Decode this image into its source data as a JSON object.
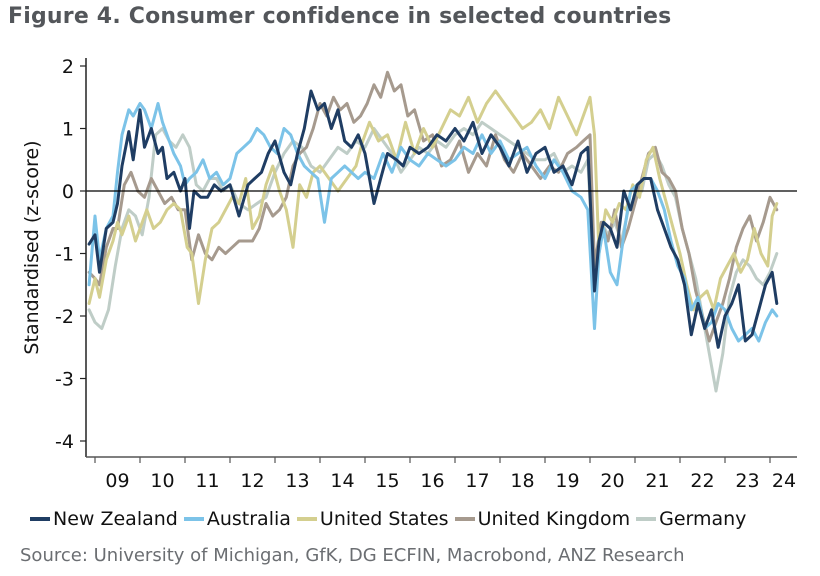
{
  "title": "Figure 4. Consumer confidence in selected countries",
  "source": "Source: University of Michigan, GfK, DG ECFIN, Macrobond, ANZ Research",
  "chart_data": {
    "type": "line",
    "title": "Figure 4. Consumer confidence in selected countries",
    "xlabel": "",
    "ylabel": "Standardised (z-score)",
    "xlim": [
      2008.8,
      2024.6
    ],
    "ylim": [
      -4.2,
      2.2
    ],
    "yticks": [
      2,
      1,
      0,
      -1,
      -2,
      -3,
      -4
    ],
    "ytick_labels": [
      "2",
      "1",
      "0",
      "-1",
      "-2",
      "-3",
      "-4"
    ],
    "xticks": [
      2009,
      2010,
      2011,
      2012,
      2013,
      2014,
      2015,
      2016,
      2017,
      2018,
      2019,
      2020,
      2021,
      2022,
      2023,
      2024
    ],
    "xtick_labels": [
      "09",
      "10",
      "11",
      "12",
      "13",
      "14",
      "15",
      "16",
      "17",
      "18",
      "19",
      "20",
      "21",
      "22",
      "23",
      "24"
    ],
    "zero_line": true,
    "grid": false,
    "legend_position": "bottom",
    "series": [
      {
        "name": "New Zealand",
        "color": "#1f3d63",
        "x": [
          2008.87,
          2009.0,
          2009.1,
          2009.25,
          2009.4,
          2009.5,
          2009.6,
          2009.75,
          2009.85,
          2010.0,
          2010.1,
          2010.25,
          2010.4,
          2010.5,
          2010.6,
          2010.75,
          2010.9,
          2011.0,
          2011.1,
          2011.2,
          2011.35,
          2011.5,
          2011.65,
          2011.8,
          2012.0,
          2012.2,
          2012.4,
          2012.55,
          2012.7,
          2012.85,
          2013.0,
          2013.2,
          2013.35,
          2013.5,
          2013.65,
          2013.8,
          2013.95,
          2014.1,
          2014.25,
          2014.4,
          2014.55,
          2014.7,
          2014.85,
          2015.0,
          2015.2,
          2015.35,
          2015.5,
          2015.7,
          2015.85,
          2016.0,
          2016.2,
          2016.4,
          2016.6,
          2016.8,
          2017.0,
          2017.2,
          2017.4,
          2017.6,
          2017.8,
          2018.0,
          2018.2,
          2018.4,
          2018.6,
          2018.8,
          2019.0,
          2019.2,
          2019.4,
          2019.6,
          2019.8,
          2019.95,
          2020.1,
          2020.2,
          2020.3,
          2020.45,
          2020.6,
          2020.75,
          2020.9,
          2021.05,
          2021.2,
          2021.35,
          2021.5,
          2021.65,
          2021.8,
          2021.95,
          2022.1,
          2022.25,
          2022.4,
          2022.55,
          2022.7,
          2022.85,
          2023.0,
          2023.15,
          2023.3,
          2023.45,
          2023.6,
          2023.75,
          2023.9,
          2024.05,
          2024.15
        ],
        "y": [
          -0.85,
          -0.7,
          -1.3,
          -0.6,
          -0.5,
          -0.2,
          0.4,
          0.95,
          0.5,
          1.3,
          0.7,
          1.0,
          0.6,
          0.7,
          0.2,
          0.3,
          0.0,
          0.2,
          -0.6,
          0.0,
          -0.1,
          -0.1,
          0.1,
          0.0,
          0.1,
          -0.4,
          0.1,
          0.2,
          0.3,
          0.6,
          0.8,
          0.3,
          0.1,
          0.6,
          1.0,
          1.6,
          1.3,
          1.4,
          1.0,
          1.3,
          0.8,
          0.7,
          0.9,
          0.6,
          -0.2,
          0.2,
          0.6,
          0.5,
          0.4,
          0.7,
          0.6,
          0.7,
          0.9,
          0.8,
          1.0,
          0.8,
          1.1,
          0.6,
          0.9,
          0.7,
          0.4,
          0.8,
          0.3,
          0.6,
          0.7,
          0.3,
          0.4,
          0.1,
          0.6,
          0.7,
          -1.6,
          -0.8,
          -0.5,
          -0.6,
          -0.9,
          0.0,
          -0.3,
          0.1,
          0.2,
          0.2,
          -0.3,
          -0.6,
          -0.9,
          -1.1,
          -1.5,
          -2.3,
          -1.8,
          -2.2,
          -1.9,
          -2.5,
          -2.0,
          -1.8,
          -1.5,
          -2.4,
          -2.3,
          -1.9,
          -1.5,
          -1.3,
          -1.8
        ]
      },
      {
        "name": "Australia",
        "color": "#7cc3e8",
        "x": [
          2008.87,
          2009.0,
          2009.1,
          2009.25,
          2009.4,
          2009.5,
          2009.6,
          2009.75,
          2009.85,
          2010.0,
          2010.1,
          2010.25,
          2010.4,
          2010.5,
          2010.6,
          2010.75,
          2010.9,
          2011.0,
          2011.1,
          2011.25,
          2011.4,
          2011.55,
          2011.7,
          2011.85,
          2012.0,
          2012.15,
          2012.3,
          2012.45,
          2012.6,
          2012.75,
          2012.9,
          2013.05,
          2013.2,
          2013.35,
          2013.5,
          2013.65,
          2013.8,
          2013.95,
          2014.1,
          2014.25,
          2014.4,
          2014.55,
          2014.7,
          2014.85,
          2015.0,
          2015.2,
          2015.4,
          2015.6,
          2015.8,
          2016.0,
          2016.2,
          2016.4,
          2016.6,
          2016.8,
          2017.0,
          2017.2,
          2017.4,
          2017.6,
          2017.8,
          2018.0,
          2018.2,
          2018.4,
          2018.6,
          2018.8,
          2019.0,
          2019.2,
          2019.4,
          2019.6,
          2019.8,
          2019.95,
          2020.1,
          2020.2,
          2020.3,
          2020.45,
          2020.6,
          2020.75,
          2020.9,
          2021.05,
          2021.2,
          2021.35,
          2021.5,
          2021.65,
          2021.8,
          2021.95,
          2022.1,
          2022.25,
          2022.4,
          2022.55,
          2022.7,
          2022.85,
          2023.0,
          2023.15,
          2023.3,
          2023.45,
          2023.6,
          2023.75,
          2023.9,
          2024.05,
          2024.15
        ],
        "y": [
          -1.5,
          -0.4,
          -1.1,
          -0.6,
          -0.4,
          0.3,
          0.9,
          1.3,
          1.2,
          1.4,
          1.3,
          1.0,
          1.4,
          1.1,
          0.9,
          0.6,
          0.4,
          0.1,
          0.2,
          0.3,
          0.5,
          0.2,
          0.3,
          0.1,
          0.2,
          0.6,
          0.7,
          0.8,
          1.0,
          0.9,
          0.7,
          0.6,
          1.0,
          0.9,
          0.6,
          0.4,
          0.3,
          0.2,
          -0.5,
          0.2,
          0.3,
          0.4,
          0.3,
          0.2,
          0.3,
          0.2,
          0.6,
          0.3,
          0.7,
          0.5,
          0.4,
          0.6,
          0.5,
          0.4,
          0.5,
          0.7,
          0.6,
          0.9,
          0.6,
          0.8,
          0.5,
          0.6,
          0.7,
          0.4,
          0.2,
          0.5,
          0.3,
          0.0,
          -0.1,
          -0.3,
          -2.2,
          -1.0,
          -0.6,
          -1.3,
          -1.5,
          -0.7,
          0.0,
          0.1,
          0.2,
          0.2,
          0.0,
          -0.3,
          -0.8,
          -1.2,
          -1.4,
          -1.9,
          -1.7,
          -2.2,
          -2.1,
          -1.8,
          -1.9,
          -2.2,
          -2.4,
          -2.3,
          -2.2,
          -2.4,
          -2.1,
          -1.9,
          -2.0
        ]
      },
      {
        "name": "United States",
        "color": "#d4cf8f",
        "x": [
          2008.87,
          2009.0,
          2009.1,
          2009.25,
          2009.4,
          2009.5,
          2009.6,
          2009.75,
          2009.9,
          2010.0,
          2010.15,
          2010.3,
          2010.45,
          2010.6,
          2010.75,
          2010.9,
          2011.05,
          2011.15,
          2011.3,
          2011.45,
          2011.6,
          2011.75,
          2011.9,
          2012.05,
          2012.2,
          2012.35,
          2012.5,
          2012.65,
          2012.8,
          2012.95,
          2013.1,
          2013.25,
          2013.4,
          2013.55,
          2013.7,
          2013.85,
          2014.0,
          2014.2,
          2014.4,
          2014.6,
          2014.8,
          2014.95,
          2015.1,
          2015.3,
          2015.5,
          2015.7,
          2015.9,
          2016.1,
          2016.3,
          2016.5,
          2016.7,
          2016.9,
          2017.1,
          2017.3,
          2017.5,
          2017.7,
          2017.9,
          2018.1,
          2018.3,
          2018.5,
          2018.7,
          2018.9,
          2019.1,
          2019.3,
          2019.5,
          2019.7,
          2019.9,
          2020.0,
          2020.1,
          2020.2,
          2020.35,
          2020.5,
          2020.65,
          2020.8,
          2020.95,
          2021.1,
          2021.25,
          2021.4,
          2021.55,
          2021.7,
          2021.85,
          2022.0,
          2022.15,
          2022.3,
          2022.45,
          2022.6,
          2022.75,
          2022.9,
          2023.05,
          2023.2,
          2023.35,
          2023.5,
          2023.65,
          2023.8,
          2023.95,
          2024.05,
          2024.15
        ],
        "y": [
          -1.8,
          -1.4,
          -1.7,
          -1.1,
          -0.8,
          -0.5,
          -0.7,
          -0.4,
          -0.8,
          -0.6,
          -0.3,
          -0.6,
          -0.5,
          -0.3,
          -0.2,
          -0.3,
          -0.9,
          -1.0,
          -1.8,
          -1.1,
          -0.6,
          -0.5,
          -0.3,
          -0.1,
          -0.2,
          0.2,
          -0.6,
          -0.4,
          0.1,
          0.4,
          0.0,
          -0.3,
          -0.9,
          0.1,
          -0.1,
          0.3,
          0.4,
          0.2,
          0.0,
          0.2,
          0.4,
          0.8,
          1.1,
          0.8,
          0.9,
          0.5,
          1.1,
          0.6,
          1.0,
          0.7,
          1.0,
          1.3,
          1.2,
          1.5,
          1.1,
          1.4,
          1.6,
          1.4,
          1.2,
          1.0,
          1.1,
          1.3,
          1.0,
          1.5,
          1.2,
          0.9,
          1.3,
          1.5,
          0.9,
          -1.0,
          -0.3,
          -0.5,
          -0.2,
          -0.3,
          0.1,
          -0.1,
          0.5,
          0.7,
          0.2,
          -0.2,
          -0.6,
          -1.0,
          -1.5,
          -1.9,
          -1.7,
          -1.6,
          -1.9,
          -1.4,
          -1.2,
          -1.0,
          -1.3,
          -1.1,
          -0.6,
          -1.0,
          -1.2,
          -0.4,
          -0.2
        ]
      },
      {
        "name": "United Kingdom",
        "color": "#a69a8e",
        "x": [
          2008.87,
          2009.0,
          2009.1,
          2009.25,
          2009.4,
          2009.5,
          2009.65,
          2009.8,
          2009.95,
          2010.1,
          2010.25,
          2010.4,
          2010.55,
          2010.7,
          2010.85,
          2011.0,
          2011.15,
          2011.3,
          2011.45,
          2011.6,
          2011.75,
          2011.9,
          2012.05,
          2012.2,
          2012.35,
          2012.5,
          2012.65,
          2012.8,
          2012.95,
          2013.1,
          2013.25,
          2013.4,
          2013.55,
          2013.7,
          2013.85,
          2014.0,
          2014.15,
          2014.3,
          2014.45,
          2014.6,
          2014.75,
          2014.9,
          2015.05,
          2015.2,
          2015.35,
          2015.5,
          2015.65,
          2015.8,
          2015.95,
          2016.1,
          2016.3,
          2016.5,
          2016.7,
          2016.9,
          2017.1,
          2017.3,
          2017.5,
          2017.7,
          2017.9,
          2018.1,
          2018.3,
          2018.5,
          2018.7,
          2018.9,
          2019.1,
          2019.3,
          2019.5,
          2019.7,
          2019.85,
          2020.0,
          2020.1,
          2020.25,
          2020.4,
          2020.55,
          2020.7,
          2020.85,
          2021.0,
          2021.15,
          2021.3,
          2021.45,
          2021.6,
          2021.75,
          2021.9,
          2022.05,
          2022.2,
          2022.35,
          2022.5,
          2022.65,
          2022.8,
          2022.95,
          2023.1,
          2023.25,
          2023.4,
          2023.55,
          2023.7,
          2023.85,
          2024.0,
          2024.15
        ],
        "y": [
          -1.3,
          -1.4,
          -1.5,
          -0.9,
          -0.6,
          -0.6,
          0.1,
          0.3,
          0.0,
          -0.1,
          0.2,
          0.0,
          -0.2,
          -0.1,
          -0.3,
          -0.3,
          -1.1,
          -0.7,
          -1.0,
          -1.1,
          -0.9,
          -1.0,
          -0.9,
          -0.8,
          -0.8,
          -0.8,
          -0.6,
          -0.2,
          -0.4,
          -0.3,
          -0.1,
          0.4,
          0.6,
          0.7,
          1.0,
          1.4,
          1.2,
          1.5,
          1.3,
          1.4,
          1.1,
          1.2,
          1.4,
          1.7,
          1.5,
          1.9,
          1.6,
          1.7,
          1.2,
          1.3,
          0.8,
          0.9,
          0.4,
          0.5,
          0.8,
          0.3,
          0.6,
          0.4,
          0.9,
          0.5,
          0.3,
          0.6,
          0.4,
          0.2,
          0.4,
          0.3,
          0.6,
          0.7,
          0.8,
          0.9,
          -1.2,
          -0.5,
          -0.8,
          -0.3,
          -0.9,
          -0.6,
          -0.2,
          0.2,
          0.6,
          0.7,
          0.3,
          0.2,
          0.0,
          -0.6,
          -1.0,
          -1.6,
          -2.0,
          -2.4,
          -2.1,
          -1.8,
          -1.4,
          -0.9,
          -0.6,
          -0.4,
          -0.8,
          -0.5,
          -0.1,
          -0.3
        ]
      },
      {
        "name": "Germany",
        "color": "#bfcdc7",
        "x": [
          2008.87,
          2009.0,
          2009.15,
          2009.3,
          2009.45,
          2009.6,
          2009.75,
          2009.9,
          2010.05,
          2010.2,
          2010.35,
          2010.5,
          2010.65,
          2010.8,
          2010.95,
          2011.1,
          2011.25,
          2011.4,
          2011.55,
          2011.7,
          2011.85,
          2012.0,
          2012.2,
          2012.4,
          2012.6,
          2012.8,
          2013.0,
          2013.2,
          2013.4,
          2013.6,
          2013.8,
          2014.0,
          2014.2,
          2014.4,
          2014.6,
          2014.8,
          2015.0,
          2015.2,
          2015.4,
          2015.6,
          2015.8,
          2016.0,
          2016.2,
          2016.4,
          2016.6,
          2016.8,
          2017.0,
          2017.2,
          2017.4,
          2017.6,
          2017.8,
          2018.0,
          2018.2,
          2018.4,
          2018.6,
          2018.8,
          2019.0,
          2019.2,
          2019.4,
          2019.6,
          2019.8,
          2019.95,
          2020.1,
          2020.25,
          2020.4,
          2020.55,
          2020.7,
          2020.85,
          2021.0,
          2021.15,
          2021.3,
          2021.45,
          2021.6,
          2021.75,
          2021.9,
          2022.05,
          2022.2,
          2022.35,
          2022.5,
          2022.65,
          2022.8,
          2022.95,
          2023.1,
          2023.25,
          2023.4,
          2023.55,
          2023.7,
          2023.85,
          2024.0,
          2024.15
        ],
        "y": [
          -1.9,
          -2.1,
          -2.2,
          -1.9,
          -1.2,
          -0.6,
          -0.3,
          -0.4,
          -0.7,
          -0.1,
          0.9,
          1.0,
          0.8,
          0.7,
          0.9,
          0.7,
          0.1,
          0.0,
          0.2,
          0.2,
          0.0,
          0.1,
          -0.2,
          -0.3,
          -0.2,
          -0.1,
          0.3,
          0.6,
          0.8,
          0.7,
          0.4,
          0.3,
          0.5,
          0.7,
          0.6,
          0.8,
          0.7,
          1.0,
          0.8,
          0.6,
          0.3,
          0.5,
          0.7,
          0.6,
          0.8,
          0.7,
          0.9,
          1.0,
          0.9,
          1.1,
          1.0,
          0.9,
          0.8,
          0.7,
          0.6,
          0.5,
          0.5,
          0.6,
          0.3,
          0.4,
          0.3,
          0.5,
          -1.5,
          -0.5,
          -0.7,
          -0.5,
          -0.8,
          -0.3,
          -0.1,
          0.0,
          0.5,
          0.6,
          0.4,
          0.1,
          -0.1,
          -0.6,
          -1.0,
          -1.4,
          -2.0,
          -2.6,
          -3.2,
          -2.6,
          -1.7,
          -1.3,
          -1.1,
          -1.2,
          -1.4,
          -1.5,
          -1.3,
          -1.0
        ]
      }
    ]
  }
}
